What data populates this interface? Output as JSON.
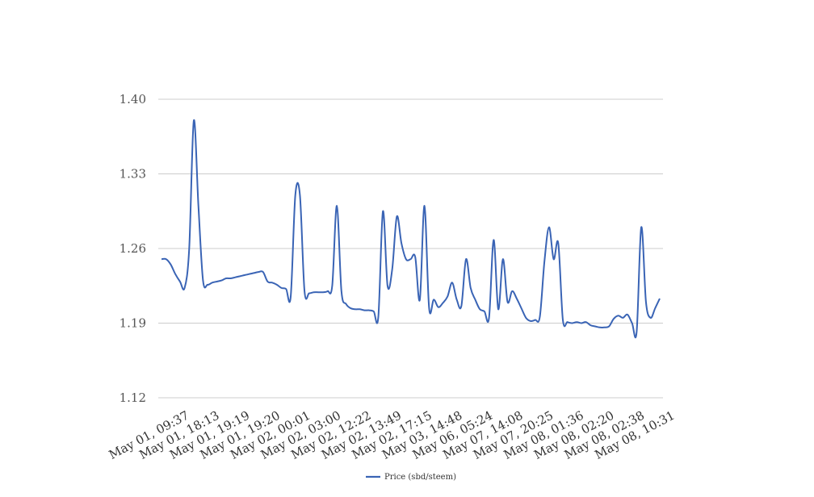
{
  "chart_data": {
    "type": "line",
    "title": "",
    "xlabel": "",
    "ylabel": "",
    "ylim": [
      1.12,
      1.4
    ],
    "yticks": [
      "1.12",
      "1.19",
      "1.26",
      "1.33",
      "1.40"
    ],
    "x_tick_labels": [
      "May 01, 09:37",
      "May 01, 18:13",
      "May 01, 19:19",
      "May 01, 19:20",
      "May 02, 00:01",
      "May 02, 03:00",
      "May 02, 12:22",
      "May 02, 13:49",
      "May 02, 17:15",
      "May 03, 14:48",
      "May 06, 05:24",
      "May 07, 14:08",
      "May 07, 20:25",
      "May 08, 01:36",
      "May 08, 02:20",
      "May 08, 02:38",
      "May 08, 10:31"
    ],
    "grid": true,
    "legend_position": "bottom-center",
    "colors": {
      "series": "#3a64b5",
      "grid": "#cccccc"
    },
    "series": [
      {
        "name": "Price (sbd/steem)",
        "values": [
          1.25,
          1.25,
          1.245,
          1.236,
          1.229,
          1.223,
          1.26,
          1.38,
          1.3,
          1.23,
          1.226,
          1.228,
          1.229,
          1.23,
          1.232,
          1.232,
          1.233,
          1.234,
          1.235,
          1.236,
          1.237,
          1.238,
          1.238,
          1.229,
          1.228,
          1.226,
          1.223,
          1.222,
          1.215,
          1.31,
          1.31,
          1.22,
          1.218,
          1.219,
          1.219,
          1.219,
          1.22,
          1.225,
          1.3,
          1.22,
          1.208,
          1.204,
          1.203,
          1.203,
          1.202,
          1.202,
          1.201,
          1.196,
          1.295,
          1.225,
          1.24,
          1.29,
          1.265,
          1.25,
          1.25,
          1.252,
          1.212,
          1.3,
          1.204,
          1.212,
          1.205,
          1.209,
          1.215,
          1.228,
          1.212,
          1.206,
          1.25,
          1.223,
          1.212,
          1.203,
          1.201,
          1.195,
          1.268,
          1.203,
          1.25,
          1.21,
          1.22,
          1.213,
          1.204,
          1.195,
          1.192,
          1.193,
          1.196,
          1.248,
          1.28,
          1.25,
          1.265,
          1.193,
          1.191,
          1.19,
          1.191,
          1.19,
          1.191,
          1.188,
          1.187,
          1.186,
          1.186,
          1.187,
          1.194,
          1.197,
          1.195,
          1.198,
          1.19,
          1.182,
          1.28,
          1.21,
          1.195,
          1.204,
          1.213
        ]
      }
    ]
  }
}
